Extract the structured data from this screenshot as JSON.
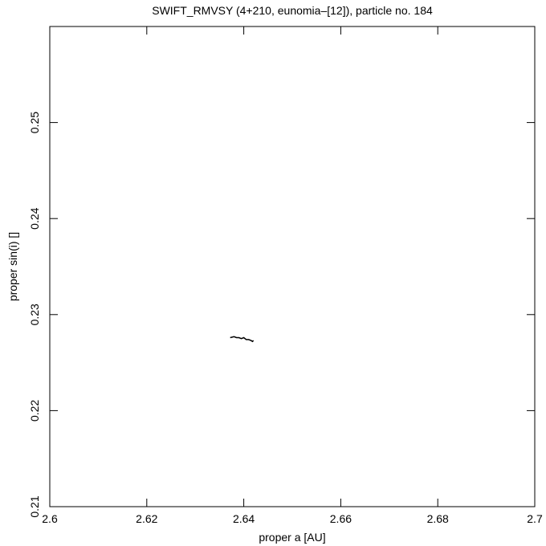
{
  "chart_data": {
    "type": "line",
    "title": "SWIFT_RMVSY (4+210, eunomia–[12]), particle no. 184",
    "x_label": "proper a [AU]",
    "y_label": "proper sin(i) []",
    "x": [
      2.6372,
      2.638,
      2.6385,
      2.639,
      2.6395,
      2.64,
      2.6405,
      2.641,
      2.6415,
      2.6418,
      2.642
    ],
    "series": [
      {
        "color": "#000000",
        "values": [
          0.2276,
          0.2277,
          0.2276,
          0.2276,
          0.2275,
          0.2276,
          0.2274,
          0.2274,
          0.2273,
          0.2272,
          0.2273
        ]
      }
    ],
    "xlim": [
      2.6,
      2.7
    ],
    "xticks": [
      2.6,
      2.62,
      2.64,
      2.66,
      2.68,
      2.7
    ],
    "ylim": [
      0.21,
      0.26
    ],
    "yticks": [
      0.21,
      0.22,
      0.23,
      0.24,
      0.25
    ],
    "grid": false
  }
}
